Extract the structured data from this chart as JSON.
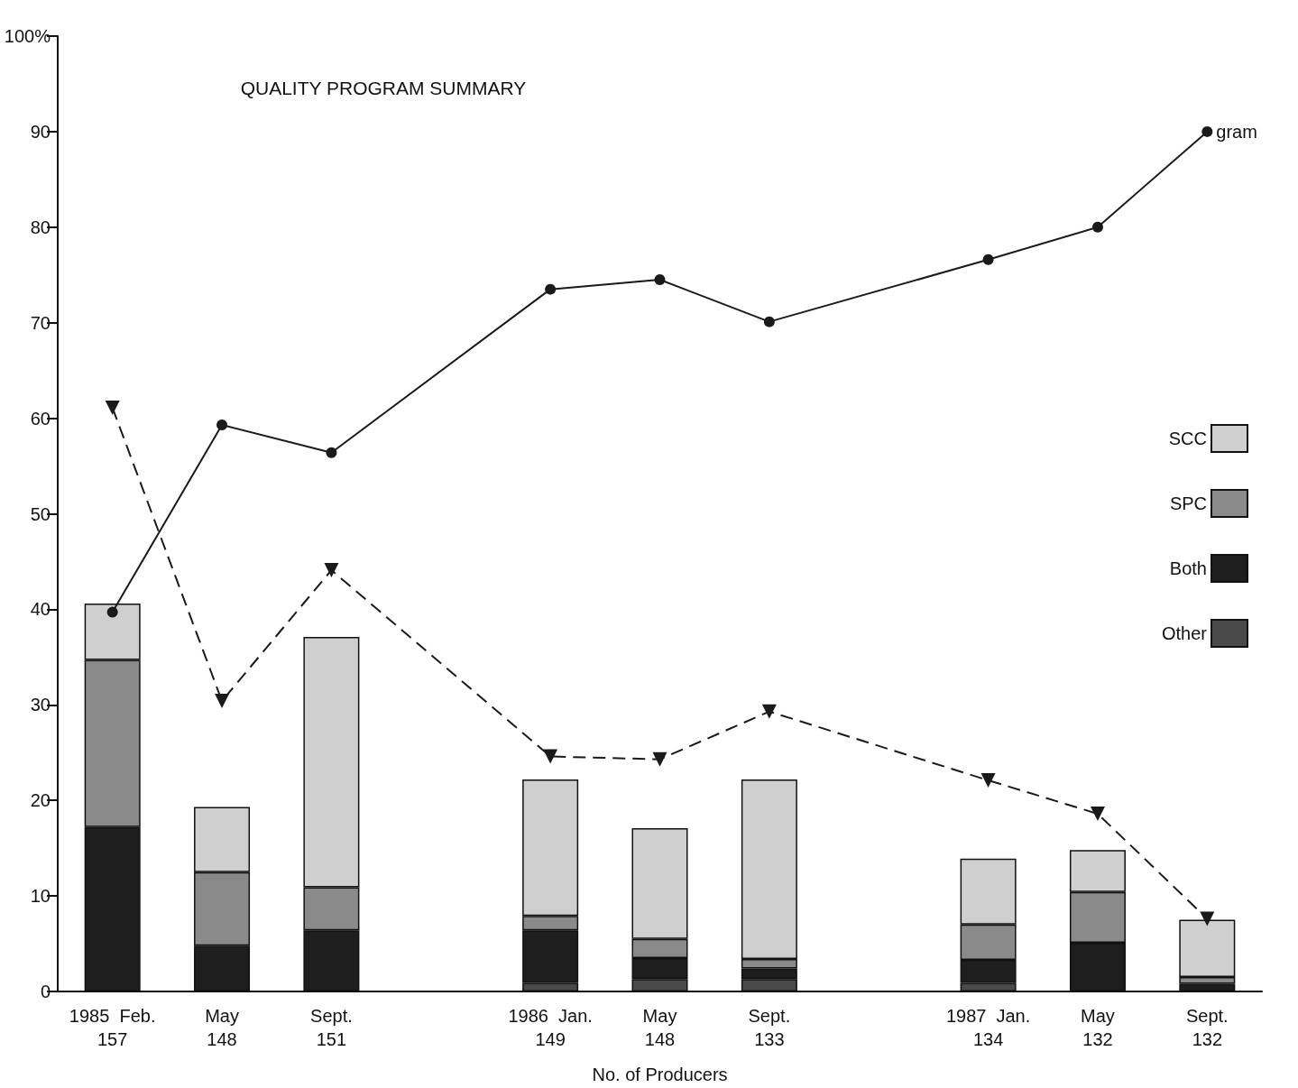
{
  "chart_data": {
    "type": "bar",
    "title": "QUALITY PROGRAM SUMMARY",
    "xlabel": "No. of Producers",
    "categories": [
      "1985  Feb.\n157",
      "May\n148",
      "Sept.\n151",
      null,
      "1986  Jan.\n149",
      "May\n148",
      "Sept.\n133",
      null,
      "1987  Jan.\n134",
      "May\n132",
      "Sept.\n132"
    ],
    "stacked": true,
    "series": [
      {
        "name": "Other",
        "color": "#4a4a4a",
        "values": [
          0,
          0,
          0,
          null,
          0.9,
          1.3,
          1.3,
          null,
          0.9,
          0,
          0
        ]
      },
      {
        "name": "Both",
        "color": "#1e1e1e",
        "values": [
          17.2,
          4.8,
          6.4,
          null,
          5.5,
          2.2,
          1.1,
          null,
          2.4,
          5.1,
          0.8
        ]
      },
      {
        "name": "SPC",
        "color": "#8a8a8a",
        "values": [
          17.5,
          7.7,
          4.5,
          null,
          1.5,
          2.0,
          1.0,
          null,
          3.7,
          5.3,
          0.7
        ]
      },
      {
        "name": "SCC",
        "color": "#cfcfcf",
        "values": [
          5.9,
          6.8,
          26.2,
          null,
          14.3,
          11.6,
          18.8,
          null,
          6.9,
          4.4,
          6.0
        ]
      },
      {
        "type": "line",
        "name": "gram",
        "color": "#1a1a1a",
        "marker": "circle",
        "line_style": "solid",
        "values": [
          39.7,
          59.3,
          56.4,
          null,
          73.5,
          74.5,
          70.1,
          null,
          76.6,
          80.0,
          90.0
        ]
      },
      {
        "type": "line",
        "color": "#1a1a1a",
        "marker": "triangle",
        "line_style": "dashed",
        "values": [
          61.1,
          30.4,
          44.1,
          null,
          24.6,
          24.3,
          29.3,
          null,
          22.1,
          18.6,
          7.6
        ]
      }
    ],
    "ylim": [
      0,
      100
    ],
    "yticks": [
      0,
      10,
      20,
      30,
      40,
      50,
      60,
      70,
      80,
      90,
      {
        "value": 100,
        "label": "100%"
      }
    ],
    "grid": false,
    "legend": "right"
  }
}
